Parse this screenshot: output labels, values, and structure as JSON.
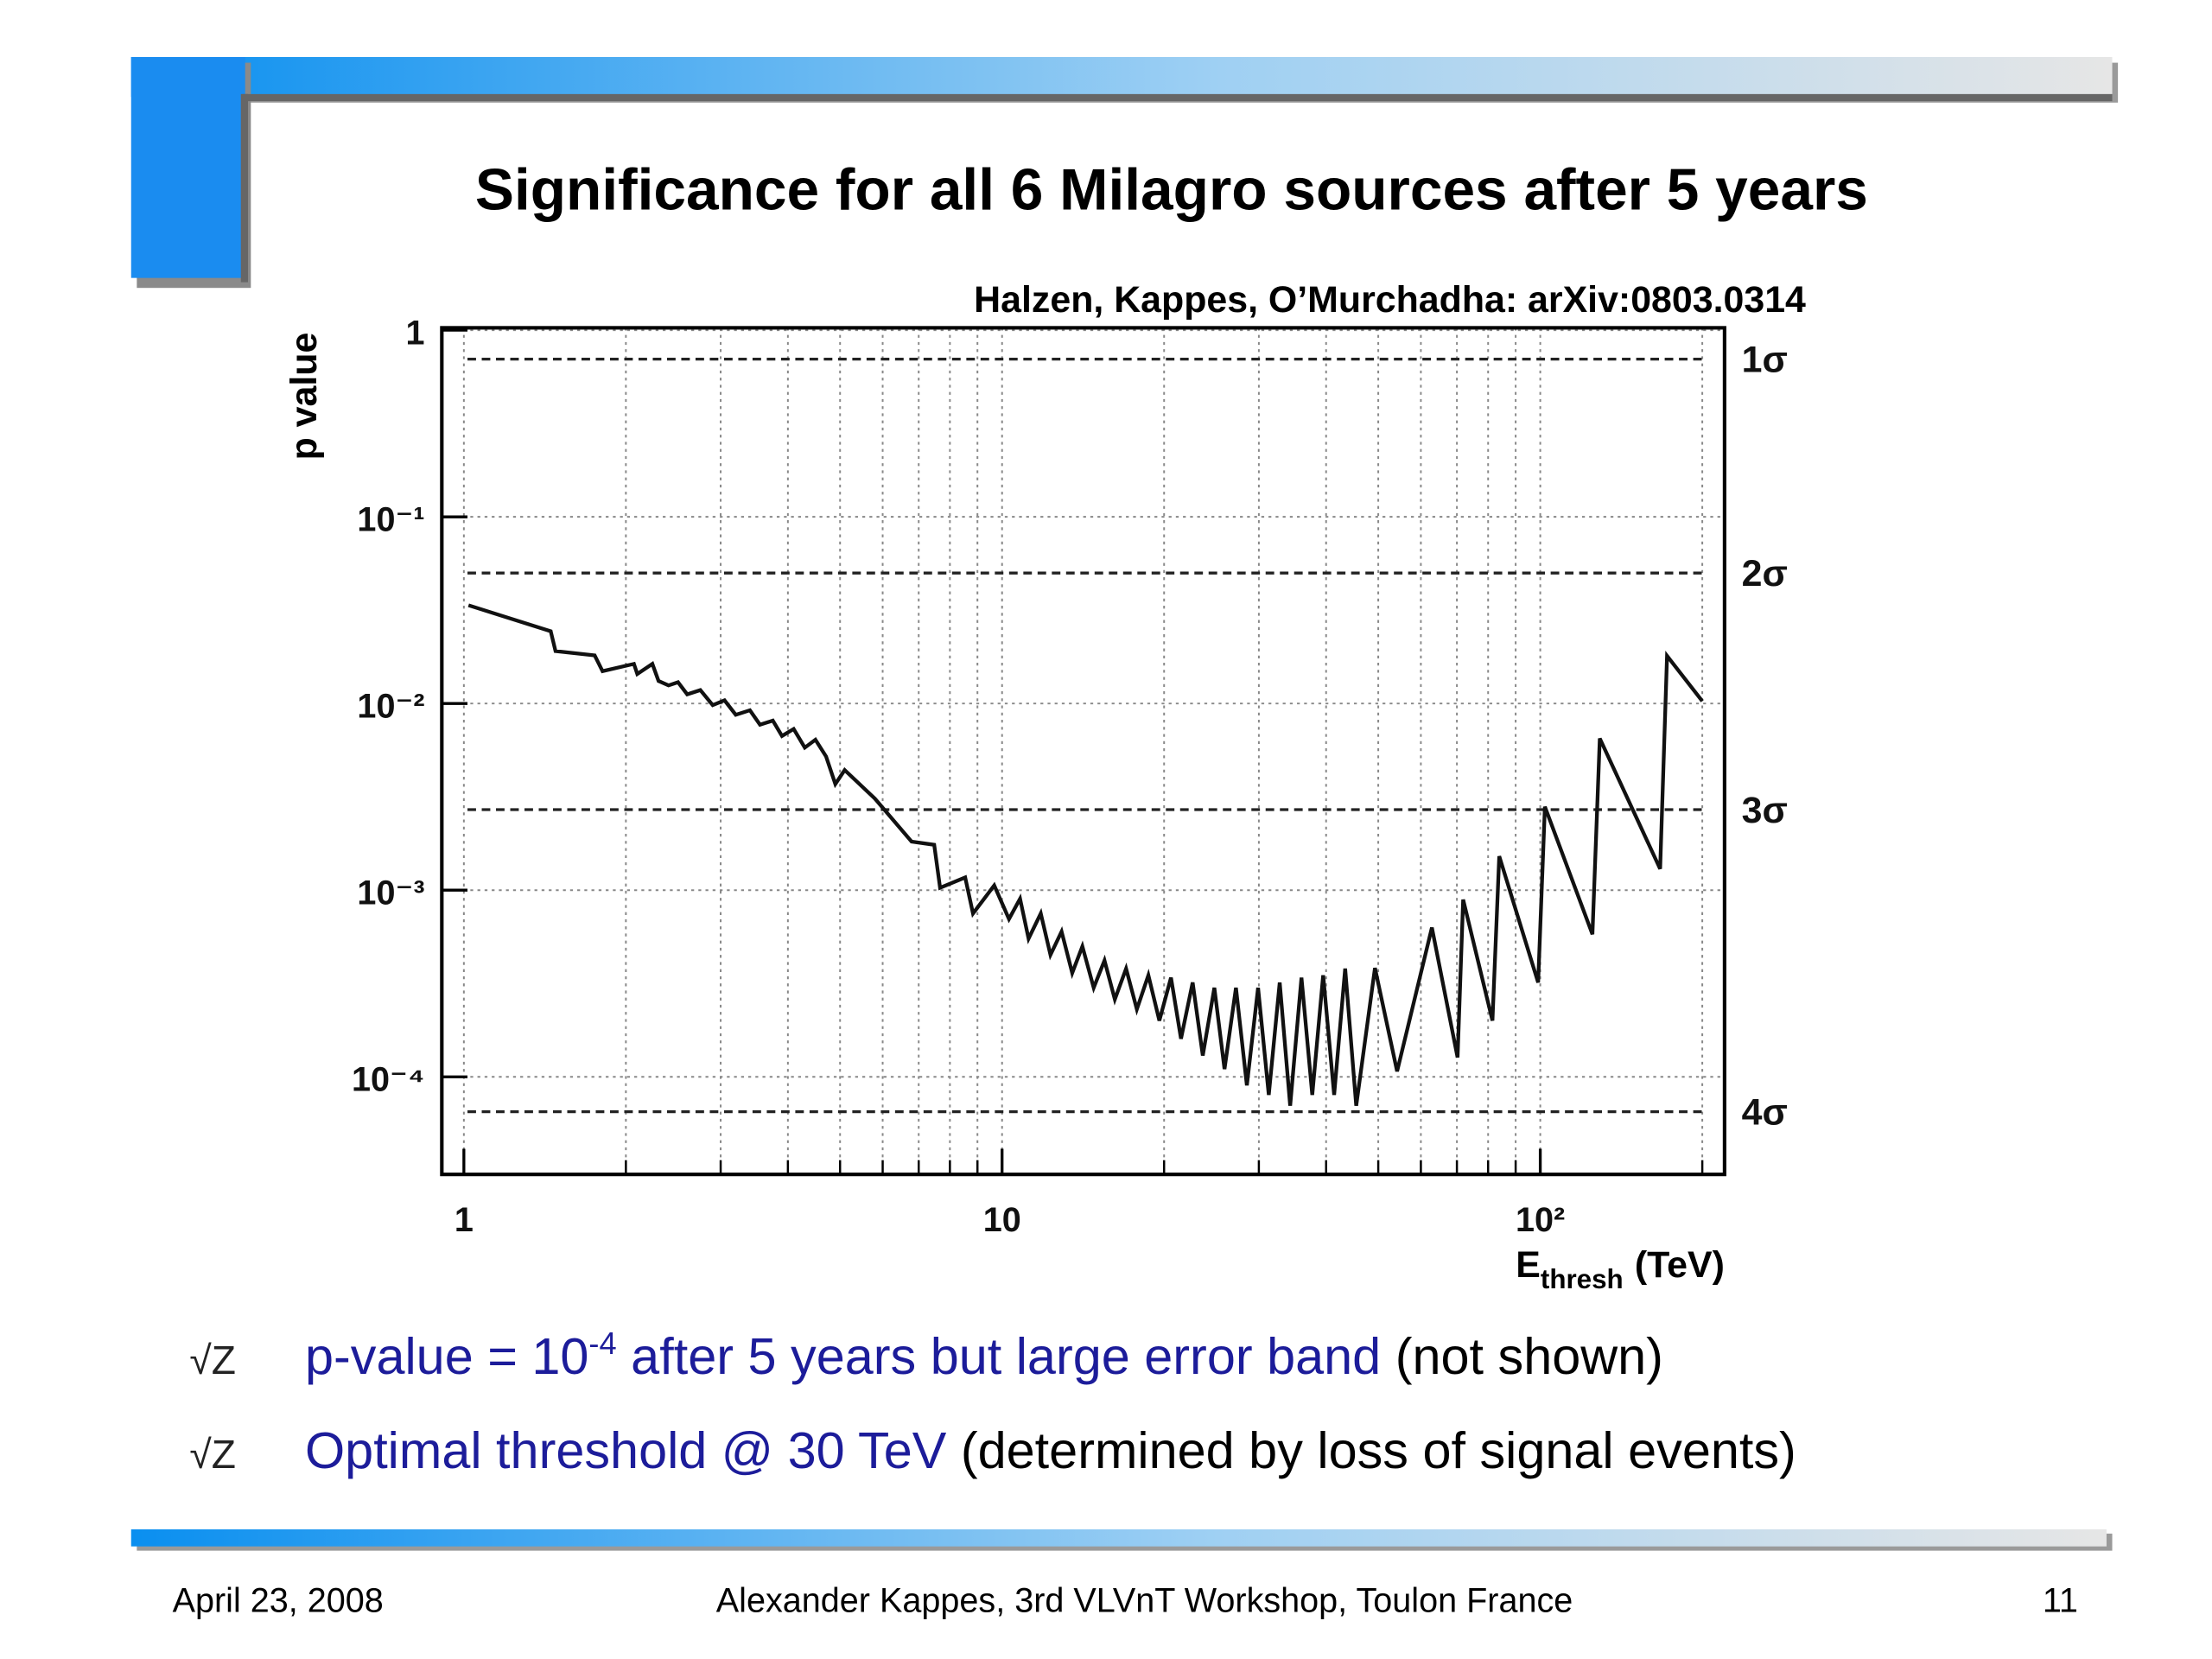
{
  "slide_title": "Significance for all 6 Milagro sources after 5 years",
  "chart_data": {
    "type": "line",
    "citation": "Halzen, Kappes, O’Murchadha: arXiv:0803.0314",
    "ylabel": "p value",
    "xlabel": {
      "main": "E",
      "sub": "thresh",
      "rest": "(TeV)"
    },
    "log_x": true,
    "log_y": true,
    "grid": true,
    "color": "#111111",
    "xlim": [
      0.91,
      220
    ],
    "ylim": [
      3e-05,
      1.03
    ],
    "xticks": [
      1,
      10,
      {
        "value": 100,
        "label": "10²"
      }
    ],
    "xminor": [
      2,
      3,
      4,
      5,
      6,
      7,
      8,
      9,
      20,
      30,
      40,
      50,
      60,
      70,
      80,
      90,
      200
    ],
    "yticks": [
      1,
      {
        "value": 0.1,
        "label": "10⁻¹"
      },
      {
        "value": 0.01,
        "label": "10⁻²"
      },
      {
        "value": 0.001,
        "label": "10⁻³"
      },
      {
        "value": 0.0001,
        "label": "10⁻⁴"
      }
    ],
    "reference_lines": [
      {
        "value": 0.7,
        "label": "1σ"
      },
      {
        "value": 0.05,
        "label": "2σ"
      },
      {
        "value": 0.0027,
        "label": "3σ"
      },
      {
        "value": 6.5e-05,
        "label": "4σ"
      }
    ],
    "x": [
      1.02,
      1.45,
      1.48,
      1.75,
      1.81,
      2.07,
      2.1,
      2.24,
      2.3,
      2.4,
      2.5,
      2.6,
      2.75,
      2.9,
      3.05,
      3.2,
      3.4,
      3.55,
      3.75,
      3.9,
      4.1,
      4.3,
      4.5,
      4.71,
      4.9,
      5.1,
      5.8,
      6.79,
      7.48,
      7.67,
      8.54,
      8.83,
      9.67,
      10.3,
      10.8,
      11.2,
      11.8,
      12.3,
      12.9,
      13.5,
      14.1,
      14.8,
      15.5,
      16.2,
      17,
      17.8,
      18.7,
      19.6,
      20.6,
      21.5,
      22.6,
      23.6,
      24.8,
      25.9,
      27.2,
      28.5,
      29.9,
      31.3,
      32.8,
      34.3,
      36,
      37.7,
      39.5,
      41.4,
      43.4,
      45.5,
      49.3,
      54.2,
      62.9,
      70.2,
      71.9,
      81.5,
      83.9,
      99.1,
      102,
      125,
      129,
      167,
      172,
      200
    ],
    "values": [
      0.0336,
      0.0244,
      0.0191,
      0.0181,
      0.0149,
      0.0163,
      0.0144,
      0.0163,
      0.0132,
      0.0125,
      0.013,
      0.0112,
      0.0118,
      0.0098,
      0.0104,
      0.0087,
      0.0092,
      0.0077,
      0.0081,
      0.0067,
      0.0073,
      0.0058,
      0.0064,
      0.0052,
      0.0037,
      0.0044,
      0.0031,
      0.00182,
      0.00175,
      0.00103,
      0.00117,
      0.00075,
      0.00106,
      0.0007,
      0.0009,
      0.00055,
      0.00075,
      0.00045,
      0.0006,
      0.00036,
      0.0005,
      0.0003,
      0.00042,
      0.00026,
      0.00038,
      0.00023,
      0.00035,
      0.0002,
      0.00034,
      0.00016,
      0.00032,
      0.00013,
      0.0003,
      0.00011,
      0.0003,
      9e-05,
      0.0003,
      8e-05,
      0.00032,
      7e-05,
      0.00034,
      8e-05,
      0.00035,
      8e-05,
      0.00038,
      7e-05,
      0.000383,
      0.000107,
      0.00063,
      0.000127,
      0.00089,
      0.0002,
      0.00152,
      0.00032,
      0.0028,
      0.00058,
      0.0065,
      0.0013,
      0.018,
      0.0103
    ]
  },
  "bullets": [
    {
      "marker": "√Z",
      "parts": [
        {
          "text": "p-value = 10",
          "style": "blue"
        },
        {
          "text": "-4",
          "style": "sup"
        },
        {
          "text": " after 5 years but large error band",
          "style": "blue"
        },
        {
          "text": " (not shown)",
          "style": "black"
        }
      ]
    },
    {
      "marker": "√Z",
      "parts": [
        {
          "text": "Optimal threshold @ 30 TeV",
          "style": "blue"
        },
        {
          "text": " (determined by loss of signal events)",
          "style": "black"
        }
      ]
    }
  ],
  "footer": {
    "date": "April 23, 2008",
    "author": "Alexander Kappes, 3rd VLVnT Workshop, Toulon France",
    "page": "11"
  }
}
